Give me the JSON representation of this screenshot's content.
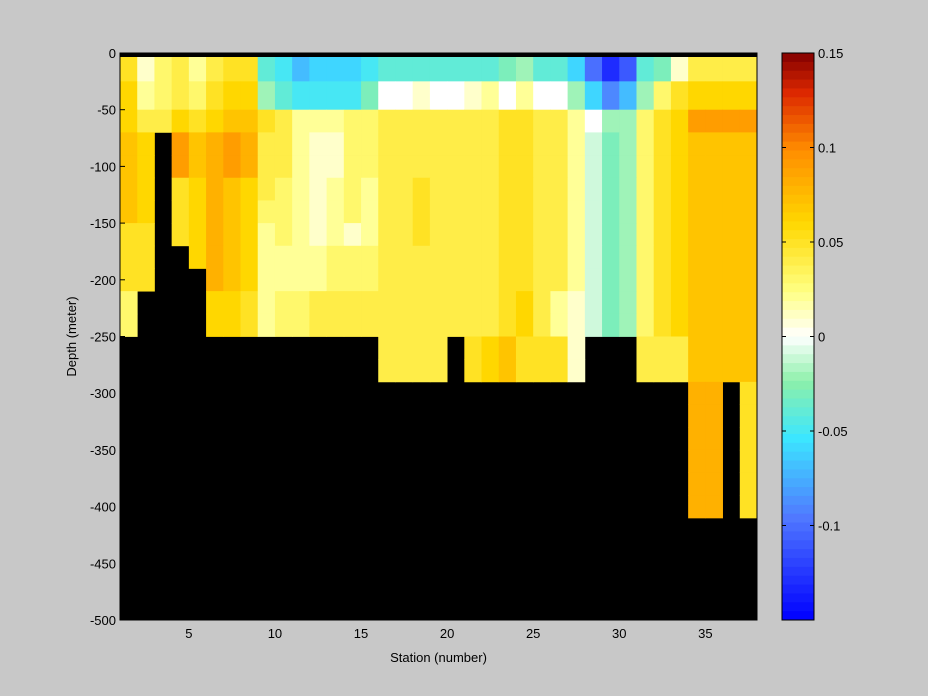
{
  "chart_data": {
    "type": "heatmap",
    "title": "",
    "xlabel": "Station (number)",
    "ylabel": "Depth (meter)",
    "xlim": [
      1,
      38
    ],
    "ylim": [
      -500,
      0
    ],
    "x_ticks": [
      5,
      10,
      15,
      20,
      25,
      30,
      35
    ],
    "y_ticks": [
      0,
      -50,
      -100,
      -150,
      -200,
      -250,
      -300,
      -350,
      -400,
      -450,
      -500
    ],
    "colorbar": {
      "range": [
        -0.15,
        0.15
      ],
      "ticks": [
        0.15,
        0.1,
        0.05,
        0,
        -0.05,
        -0.1
      ],
      "tick_labels": [
        "0.15",
        "0.1",
        "0.05",
        "0",
        "-0.05",
        "-0.1"
      ],
      "colormap": "jet-with-white-center"
    },
    "land_color": "#000000",
    "depth_levels": [
      -10,
      -40,
      -60,
      -80,
      -100,
      -120,
      -140,
      -160,
      -180,
      -200,
      -220,
      -240,
      -260,
      -280,
      -300,
      -320,
      -340,
      -360,
      -380,
      -400
    ],
    "stations": [
      1,
      2,
      3,
      4,
      5,
      6,
      7,
      8,
      9,
      10,
      11,
      12,
      13,
      14,
      15,
      16,
      17,
      18,
      19,
      20,
      21,
      22,
      23,
      24,
      25,
      26,
      27,
      28,
      29,
      30,
      31,
      32,
      33,
      34,
      35,
      36,
      37
    ],
    "max_depth": [
      250,
      200,
      75,
      150,
      150,
      250,
      250,
      250,
      250,
      250,
      250,
      250,
      250,
      250,
      300,
      300,
      300,
      300,
      300,
      250,
      300,
      300,
      300,
      300,
      300,
      300,
      300,
      250,
      250,
      250,
      300,
      300,
      300,
      400,
      400,
      300,
      400
    ],
    "values": [
      [
        0.05,
        0.01,
        0.03,
        0.04,
        0.02,
        0.04,
        0.05,
        0.05,
        -0.04,
        -0.05,
        -0.07,
        -0.06,
        -0.06,
        -0.06,
        -0.05,
        -0.04,
        -0.04,
        -0.04,
        -0.04,
        -0.04,
        -0.04,
        -0.04,
        -0.03,
        -0.02,
        -0.04,
        -0.04,
        -0.06,
        -0.1,
        -0.13,
        -0.11,
        -0.04,
        -0.03,
        0.01,
        0.04,
        0.04,
        0.04,
        0.04
      ],
      [
        0.06,
        0.02,
        0.03,
        0.04,
        0.03,
        0.05,
        0.06,
        0.06,
        -0.02,
        -0.04,
        -0.05,
        -0.05,
        -0.05,
        -0.05,
        -0.03,
        0.0,
        0.0,
        0.01,
        0.0,
        0.0,
        0.01,
        0.02,
        0.0,
        0.02,
        0.0,
        0.0,
        -0.02,
        -0.06,
        -0.09,
        -0.07,
        -0.02,
        0.03,
        0.05,
        0.06,
        0.06,
        0.06,
        0.06
      ],
      [
        0.06,
        0.04,
        0.04,
        0.06,
        0.05,
        0.06,
        0.07,
        0.07,
        0.05,
        0.04,
        0.02,
        0.02,
        0.02,
        0.03,
        0.03,
        0.04,
        0.04,
        0.04,
        0.04,
        0.04,
        0.04,
        0.04,
        0.05,
        0.05,
        0.04,
        0.04,
        0.02,
        0.0,
        -0.02,
        -0.02,
        0.03,
        0.05,
        0.06,
        0.09,
        0.09,
        0.09,
        0.09
      ],
      [
        0.07,
        0.06,
        null,
        0.09,
        0.07,
        0.08,
        0.09,
        0.08,
        0.04,
        0.04,
        0.02,
        0.01,
        0.01,
        0.03,
        0.03,
        0.04,
        0.04,
        0.04,
        0.04,
        0.04,
        0.04,
        0.04,
        0.05,
        0.05,
        0.04,
        0.04,
        0.02,
        -0.01,
        -0.03,
        -0.02,
        0.03,
        0.05,
        0.06,
        0.07,
        0.07,
        0.07,
        0.07
      ],
      [
        0.07,
        0.06,
        null,
        0.09,
        0.07,
        0.08,
        0.09,
        0.08,
        0.04,
        0.04,
        0.02,
        0.01,
        0.01,
        0.03,
        0.03,
        0.04,
        0.04,
        0.04,
        0.04,
        0.04,
        0.04,
        0.04,
        0.05,
        0.05,
        0.04,
        0.04,
        0.02,
        -0.01,
        -0.03,
        -0.02,
        0.03,
        0.05,
        0.06,
        0.07,
        0.07,
        0.07,
        0.07
      ],
      [
        0.07,
        0.06,
        null,
        0.05,
        0.06,
        0.08,
        0.07,
        0.06,
        0.04,
        0.03,
        0.02,
        0.01,
        0.02,
        0.03,
        0.02,
        0.04,
        0.04,
        0.05,
        0.04,
        0.04,
        0.04,
        0.04,
        0.05,
        0.05,
        0.04,
        0.04,
        0.02,
        -0.01,
        -0.03,
        -0.02,
        0.03,
        0.05,
        0.06,
        0.07,
        0.07,
        0.07,
        0.07
      ],
      [
        0.07,
        0.06,
        null,
        0.05,
        0.06,
        0.08,
        0.07,
        0.06,
        0.03,
        0.03,
        0.02,
        0.01,
        0.02,
        0.03,
        0.02,
        0.04,
        0.04,
        0.05,
        0.04,
        0.04,
        0.04,
        0.04,
        0.05,
        0.05,
        0.04,
        0.04,
        0.02,
        -0.01,
        -0.03,
        -0.02,
        0.03,
        0.05,
        0.06,
        0.07,
        0.07,
        0.07,
        0.07
      ],
      [
        0.05,
        0.05,
        null,
        0.05,
        0.06,
        0.08,
        0.07,
        0.06,
        0.02,
        0.03,
        0.02,
        0.01,
        0.02,
        0.01,
        0.02,
        0.04,
        0.04,
        0.05,
        0.04,
        0.04,
        0.04,
        0.04,
        0.05,
        0.05,
        0.04,
        0.04,
        0.02,
        -0.01,
        -0.03,
        -0.02,
        0.03,
        0.05,
        0.06,
        0.07,
        0.07,
        0.07,
        0.07
      ],
      [
        0.05,
        0.05,
        null,
        null,
        0.06,
        0.08,
        0.07,
        0.06,
        0.02,
        0.02,
        0.02,
        0.02,
        0.03,
        0.03,
        0.03,
        0.04,
        0.04,
        0.04,
        0.04,
        0.04,
        0.04,
        0.04,
        0.05,
        0.05,
        0.04,
        0.04,
        0.02,
        -0.01,
        -0.03,
        -0.02,
        0.03,
        0.05,
        0.06,
        0.07,
        0.07,
        0.07,
        0.07
      ],
      [
        0.05,
        0.05,
        null,
        null,
        null,
        0.08,
        0.07,
        0.06,
        0.02,
        0.02,
        0.02,
        0.02,
        0.03,
        0.03,
        0.03,
        0.04,
        0.04,
        0.04,
        0.04,
        0.04,
        0.04,
        0.04,
        0.05,
        0.05,
        0.04,
        0.04,
        0.02,
        -0.01,
        -0.03,
        -0.02,
        0.03,
        0.05,
        0.06,
        0.07,
        0.07,
        0.07,
        0.07
      ],
      [
        0.03,
        null,
        null,
        null,
        null,
        0.06,
        0.06,
        0.05,
        0.02,
        0.03,
        0.03,
        0.04,
        0.04,
        0.04,
        0.04,
        0.04,
        0.04,
        0.04,
        0.04,
        0.04,
        0.04,
        0.04,
        0.05,
        0.06,
        0.04,
        0.02,
        0.01,
        -0.01,
        -0.03,
        -0.02,
        0.03,
        0.05,
        0.06,
        0.07,
        0.07,
        0.07,
        0.07
      ],
      [
        0.03,
        null,
        null,
        null,
        null,
        0.06,
        0.06,
        0.05,
        0.02,
        0.03,
        0.03,
        0.04,
        0.04,
        0.04,
        0.04,
        0.04,
        0.04,
        0.04,
        0.04,
        0.04,
        0.04,
        0.04,
        0.05,
        0.06,
        0.04,
        0.02,
        0.01,
        -0.01,
        -0.03,
        -0.02,
        0.03,
        0.05,
        0.06,
        0.07,
        0.07,
        0.07,
        0.07
      ],
      [
        null,
        null,
        null,
        null,
        null,
        null,
        null,
        null,
        null,
        null,
        null,
        null,
        null,
        null,
        null,
        0.04,
        0.04,
        0.04,
        0.04,
        null,
        0.05,
        0.06,
        0.07,
        0.05,
        0.05,
        0.05,
        0.01,
        null,
        null,
        null,
        0.04,
        0.04,
        0.04,
        0.07,
        0.07,
        0.07,
        0.07
      ],
      [
        null,
        null,
        null,
        null,
        null,
        null,
        null,
        null,
        null,
        null,
        null,
        null,
        null,
        null,
        null,
        0.04,
        0.04,
        0.04,
        0.04,
        null,
        0.05,
        0.06,
        0.07,
        0.05,
        0.05,
        0.05,
        0.01,
        null,
        null,
        null,
        0.04,
        0.04,
        0.04,
        0.07,
        0.07,
        0.07,
        0.07
      ],
      [
        null,
        null,
        null,
        null,
        null,
        null,
        null,
        null,
        null,
        null,
        null,
        null,
        null,
        null,
        null,
        null,
        null,
        null,
        null,
        null,
        null,
        null,
        null,
        null,
        null,
        null,
        null,
        null,
        null,
        null,
        null,
        null,
        null,
        0.08,
        0.08,
        null,
        0.05
      ],
      [
        null,
        null,
        null,
        null,
        null,
        null,
        null,
        null,
        null,
        null,
        null,
        null,
        null,
        null,
        null,
        null,
        null,
        null,
        null,
        null,
        null,
        null,
        null,
        null,
        null,
        null,
        null,
        null,
        null,
        null,
        null,
        null,
        null,
        0.08,
        0.08,
        null,
        0.05
      ],
      [
        null,
        null,
        null,
        null,
        null,
        null,
        null,
        null,
        null,
        null,
        null,
        null,
        null,
        null,
        null,
        null,
        null,
        null,
        null,
        null,
        null,
        null,
        null,
        null,
        null,
        null,
        null,
        null,
        null,
        null,
        null,
        null,
        null,
        0.08,
        0.08,
        null,
        0.05
      ],
      [
        null,
        null,
        null,
        null,
        null,
        null,
        null,
        null,
        null,
        null,
        null,
        null,
        null,
        null,
        null,
        null,
        null,
        null,
        null,
        null,
        null,
        null,
        null,
        null,
        null,
        null,
        null,
        null,
        null,
        null,
        null,
        null,
        null,
        0.08,
        0.08,
        null,
        0.05
      ],
      [
        null,
        null,
        null,
        null,
        null,
        null,
        null,
        null,
        null,
        null,
        null,
        null,
        null,
        null,
        null,
        null,
        null,
        null,
        null,
        null,
        null,
        null,
        null,
        null,
        null,
        null,
        null,
        null,
        null,
        null,
        null,
        null,
        null,
        0.08,
        0.08,
        null,
        0.05
      ],
      [
        null,
        null,
        null,
        null,
        null,
        null,
        null,
        null,
        null,
        null,
        null,
        null,
        null,
        null,
        null,
        null,
        null,
        null,
        null,
        null,
        null,
        null,
        null,
        null,
        null,
        null,
        null,
        null,
        null,
        null,
        null,
        null,
        null,
        0.08,
        0.08,
        null,
        0.05
      ]
    ]
  }
}
